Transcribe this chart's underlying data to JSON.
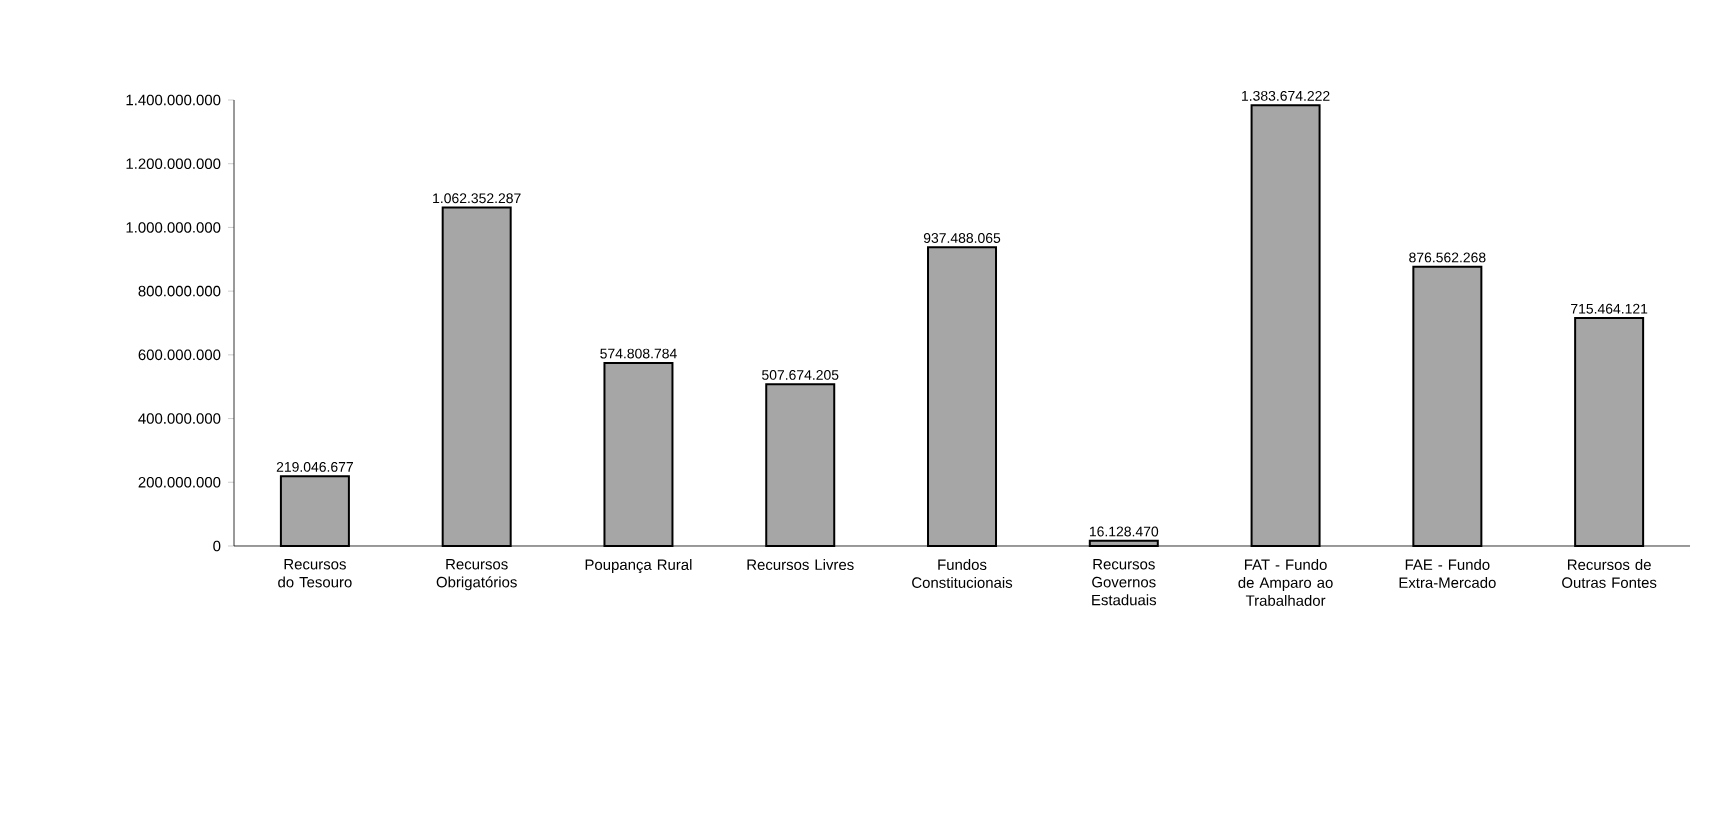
{
  "chart_data": {
    "type": "bar",
    "categories": [
      "Recursos do Tesouro",
      "Recursos Obrigatórios",
      "Poupança Rural",
      "Recursos Livres",
      "Fundos Constitucionais",
      "Recursos Governos Estaduais",
      "FAT - Fundo de Amparo ao Trabalhador",
      "FAE - Fundo Extra-Mercado",
      "Recursos de Outras Fontes"
    ],
    "values": [
      219046677,
      1062352287,
      574808784,
      507674205,
      937488065,
      16128470,
      1383674222,
      876562268,
      715464121
    ],
    "value_labels": [
      "219.046.677",
      "1.062.352.287",
      "574.808.784",
      "507.674.205",
      "937.488.065",
      "16.128.470",
      "1.383.674.222",
      "876.562.268",
      "715.464.121"
    ],
    "color": "#a6a6a6",
    "ylim": [
      0,
      1400000000
    ],
    "yticks": [
      {
        "value": 0,
        "label": "0"
      },
      {
        "value": 200000000,
        "label": "200.000.000"
      },
      {
        "value": 400000000,
        "label": "400.000.000"
      },
      {
        "value": 600000000,
        "label": "600.000.000"
      },
      {
        "value": 800000000,
        "label": "800.000.000"
      },
      {
        "value": 1000000000,
        "label": "1.000.000.000"
      },
      {
        "value": 1200000000,
        "label": "1.200.000.000"
      },
      {
        "value": 1400000000,
        "label": "1.400.000.000"
      }
    ],
    "grid": false
  }
}
